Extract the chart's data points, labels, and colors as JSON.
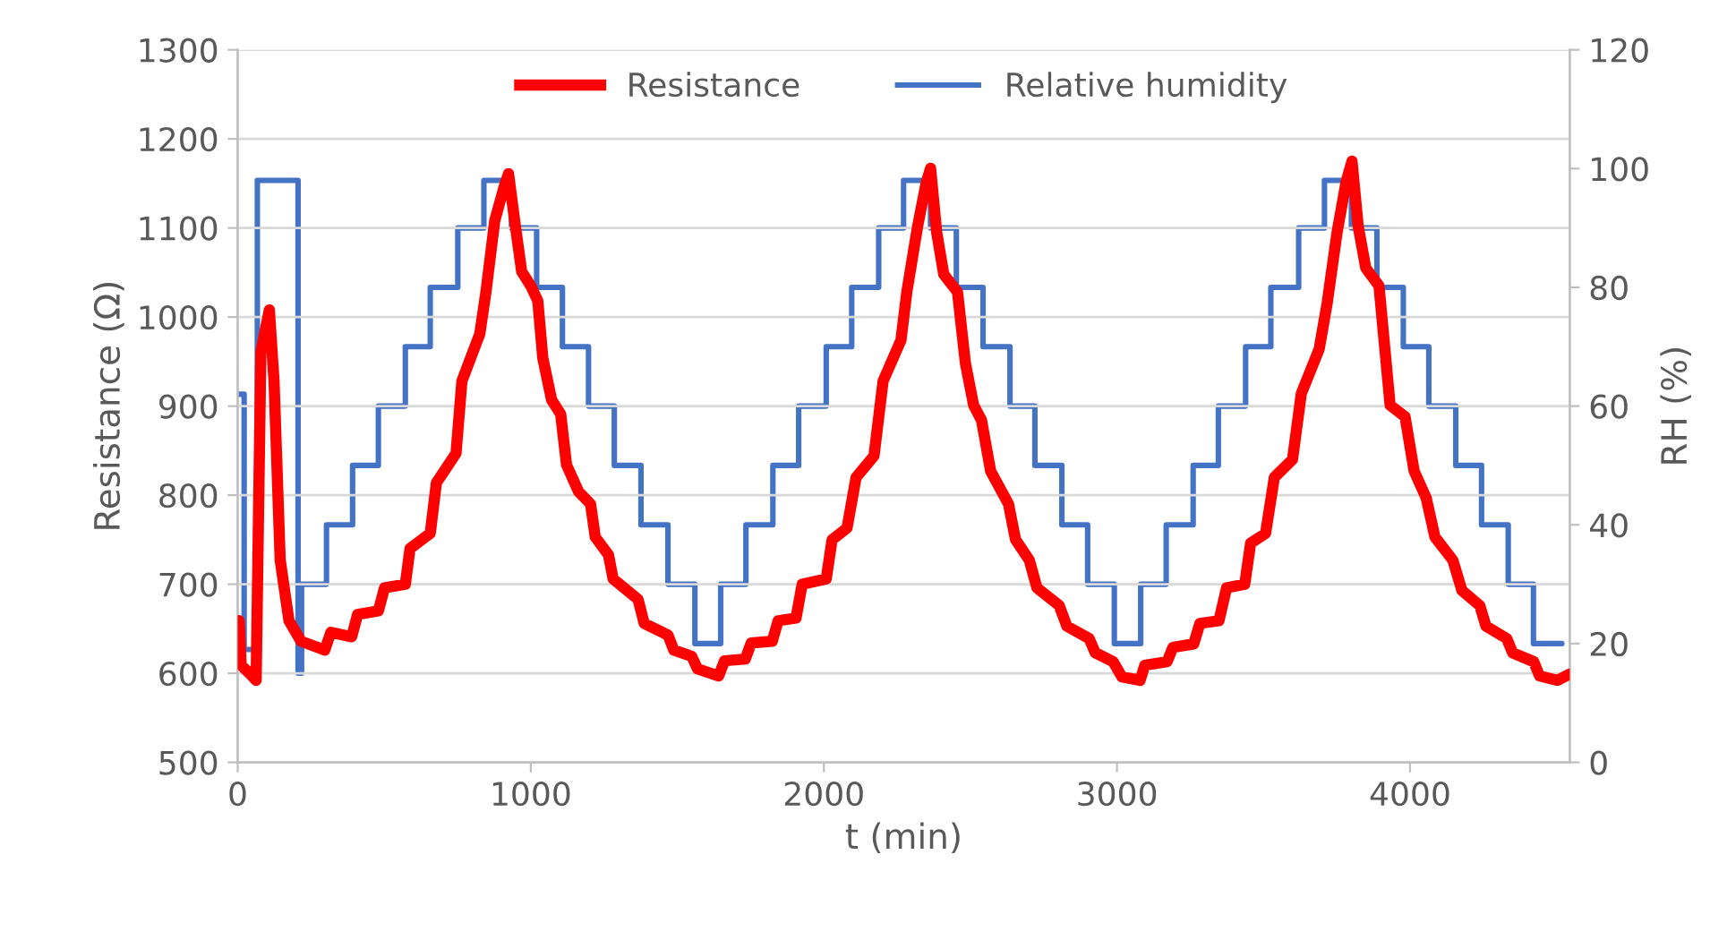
{
  "chart_data": {
    "type": "line",
    "xlabel": "t (min)",
    "ylabel": "Resistance (Ω)",
    "y2label": "RH (%)",
    "xlim": [
      0,
      4545
    ],
    "xticks": [
      0,
      1000,
      2000,
      3000,
      4000
    ],
    "ylim": [
      500,
      1300
    ],
    "yticks": [
      500,
      600,
      700,
      800,
      900,
      1000,
      1100,
      1200,
      1300
    ],
    "y2lim": [
      0,
      120
    ],
    "y2ticks": [
      0,
      20,
      40,
      60,
      80,
      100,
      120
    ],
    "grid": "y",
    "legend": "top",
    "marker": "none",
    "line_style": "solid",
    "series": [
      {
        "name": "Resistance",
        "color": "#ff0000",
        "x": [
          5,
          12,
          43,
          63,
          79,
          108,
          124,
          145,
          175,
          216,
          297,
          318,
          389,
          409,
          480,
          501,
          572,
          588,
          657,
          678,
          745,
          765,
          826,
          847,
          877,
          908,
          924,
          945,
          969,
          1000,
          1024,
          1041,
          1071,
          1102,
          1122,
          1163,
          1204,
          1220,
          1265,
          1281,
          1366,
          1387,
          1468,
          1488,
          1549,
          1569,
          1641,
          1661,
          1732,
          1752,
          1824,
          1844,
          1905,
          1926,
          2008,
          2028,
          2079,
          2110,
          2171,
          2202,
          2263,
          2283,
          2320,
          2348,
          2364,
          2385,
          2409,
          2456,
          2483,
          2511,
          2538,
          2569,
          2630,
          2654,
          2701,
          2727,
          2803,
          2829,
          2905,
          2926,
          2987,
          3017,
          3079,
          3095,
          3171,
          3191,
          3262,
          3283,
          3348,
          3374,
          3436,
          3456,
          3507,
          3537,
          3599,
          3629,
          3690,
          3717,
          3751,
          3782,
          3802,
          3823,
          3849,
          3894,
          3932,
          3983,
          4014,
          4055,
          4085,
          4146,
          4177,
          4238,
          4259,
          4330,
          4350,
          4422,
          4442,
          4503,
          4544
        ],
        "values": [
          659,
          609,
          599,
          592,
          961,
          1008,
          928,
          727,
          659,
          636,
          626,
          646,
          641,
          666,
          670,
          696,
          700,
          740,
          757,
          814,
          847,
          928,
          981,
          1028,
          1108,
          1145,
          1161,
          1108,
          1051,
          1035,
          1018,
          954,
          907,
          891,
          834,
          804,
          790,
          753,
          733,
          706,
          683,
          656,
          643,
          626,
          619,
          605,
          597,
          614,
          616,
          634,
          636,
          659,
          662,
          700,
          706,
          750,
          763,
          820,
          844,
          928,
          974,
          1028,
          1102,
          1149,
          1167,
          1095,
          1048,
          1028,
          948,
          901,
          884,
          827,
          790,
          750,
          727,
          696,
          676,
          653,
          639,
          623,
          613,
          596,
          592,
          609,
          613,
          629,
          633,
          656,
          659,
          696,
          700,
          746,
          757,
          820,
          840,
          914,
          964,
          1015,
          1095,
          1152,
          1175,
          1102,
          1055,
          1035,
          901,
          888,
          827,
          797,
          753,
          727,
          693,
          676,
          653,
          639,
          623,
          613,
          597,
          592,
          599
        ]
      },
      {
        "name": "Relative humidity",
        "type": "step",
        "axis": "y2",
        "color": "#4472c4",
        "x": [
          0,
          22,
          53,
          67,
          124,
          206,
          218,
          303,
          392,
          480,
          572,
          657,
          751,
          840,
          934,
          1020,
          1108,
          1197,
          1285,
          1376,
          1468,
          1560,
          1648,
          1734,
          1826,
          1914,
          2008,
          2095,
          2187,
          2272,
          2364,
          2452,
          2543,
          2635,
          2720,
          2812,
          2900,
          2991,
          3081,
          3168,
          3260,
          3346,
          3439,
          3525,
          3620,
          3708,
          3800,
          3887,
          3977,
          4064,
          4156,
          4244,
          4335,
          4421,
          4518
        ],
        "values": [
          62,
          19,
          19,
          98,
          98,
          15,
          30,
          40,
          50,
          60,
          70,
          80,
          90,
          98,
          90,
          80,
          70,
          60,
          50,
          40,
          30,
          20,
          30,
          40,
          50,
          60,
          70,
          80,
          90,
          98,
          90,
          80,
          70,
          60,
          50,
          40,
          30,
          20,
          30,
          40,
          50,
          60,
          70,
          80,
          90,
          98,
          90,
          80,
          70,
          60,
          50,
          40,
          30,
          20,
          20
        ]
      }
    ]
  }
}
